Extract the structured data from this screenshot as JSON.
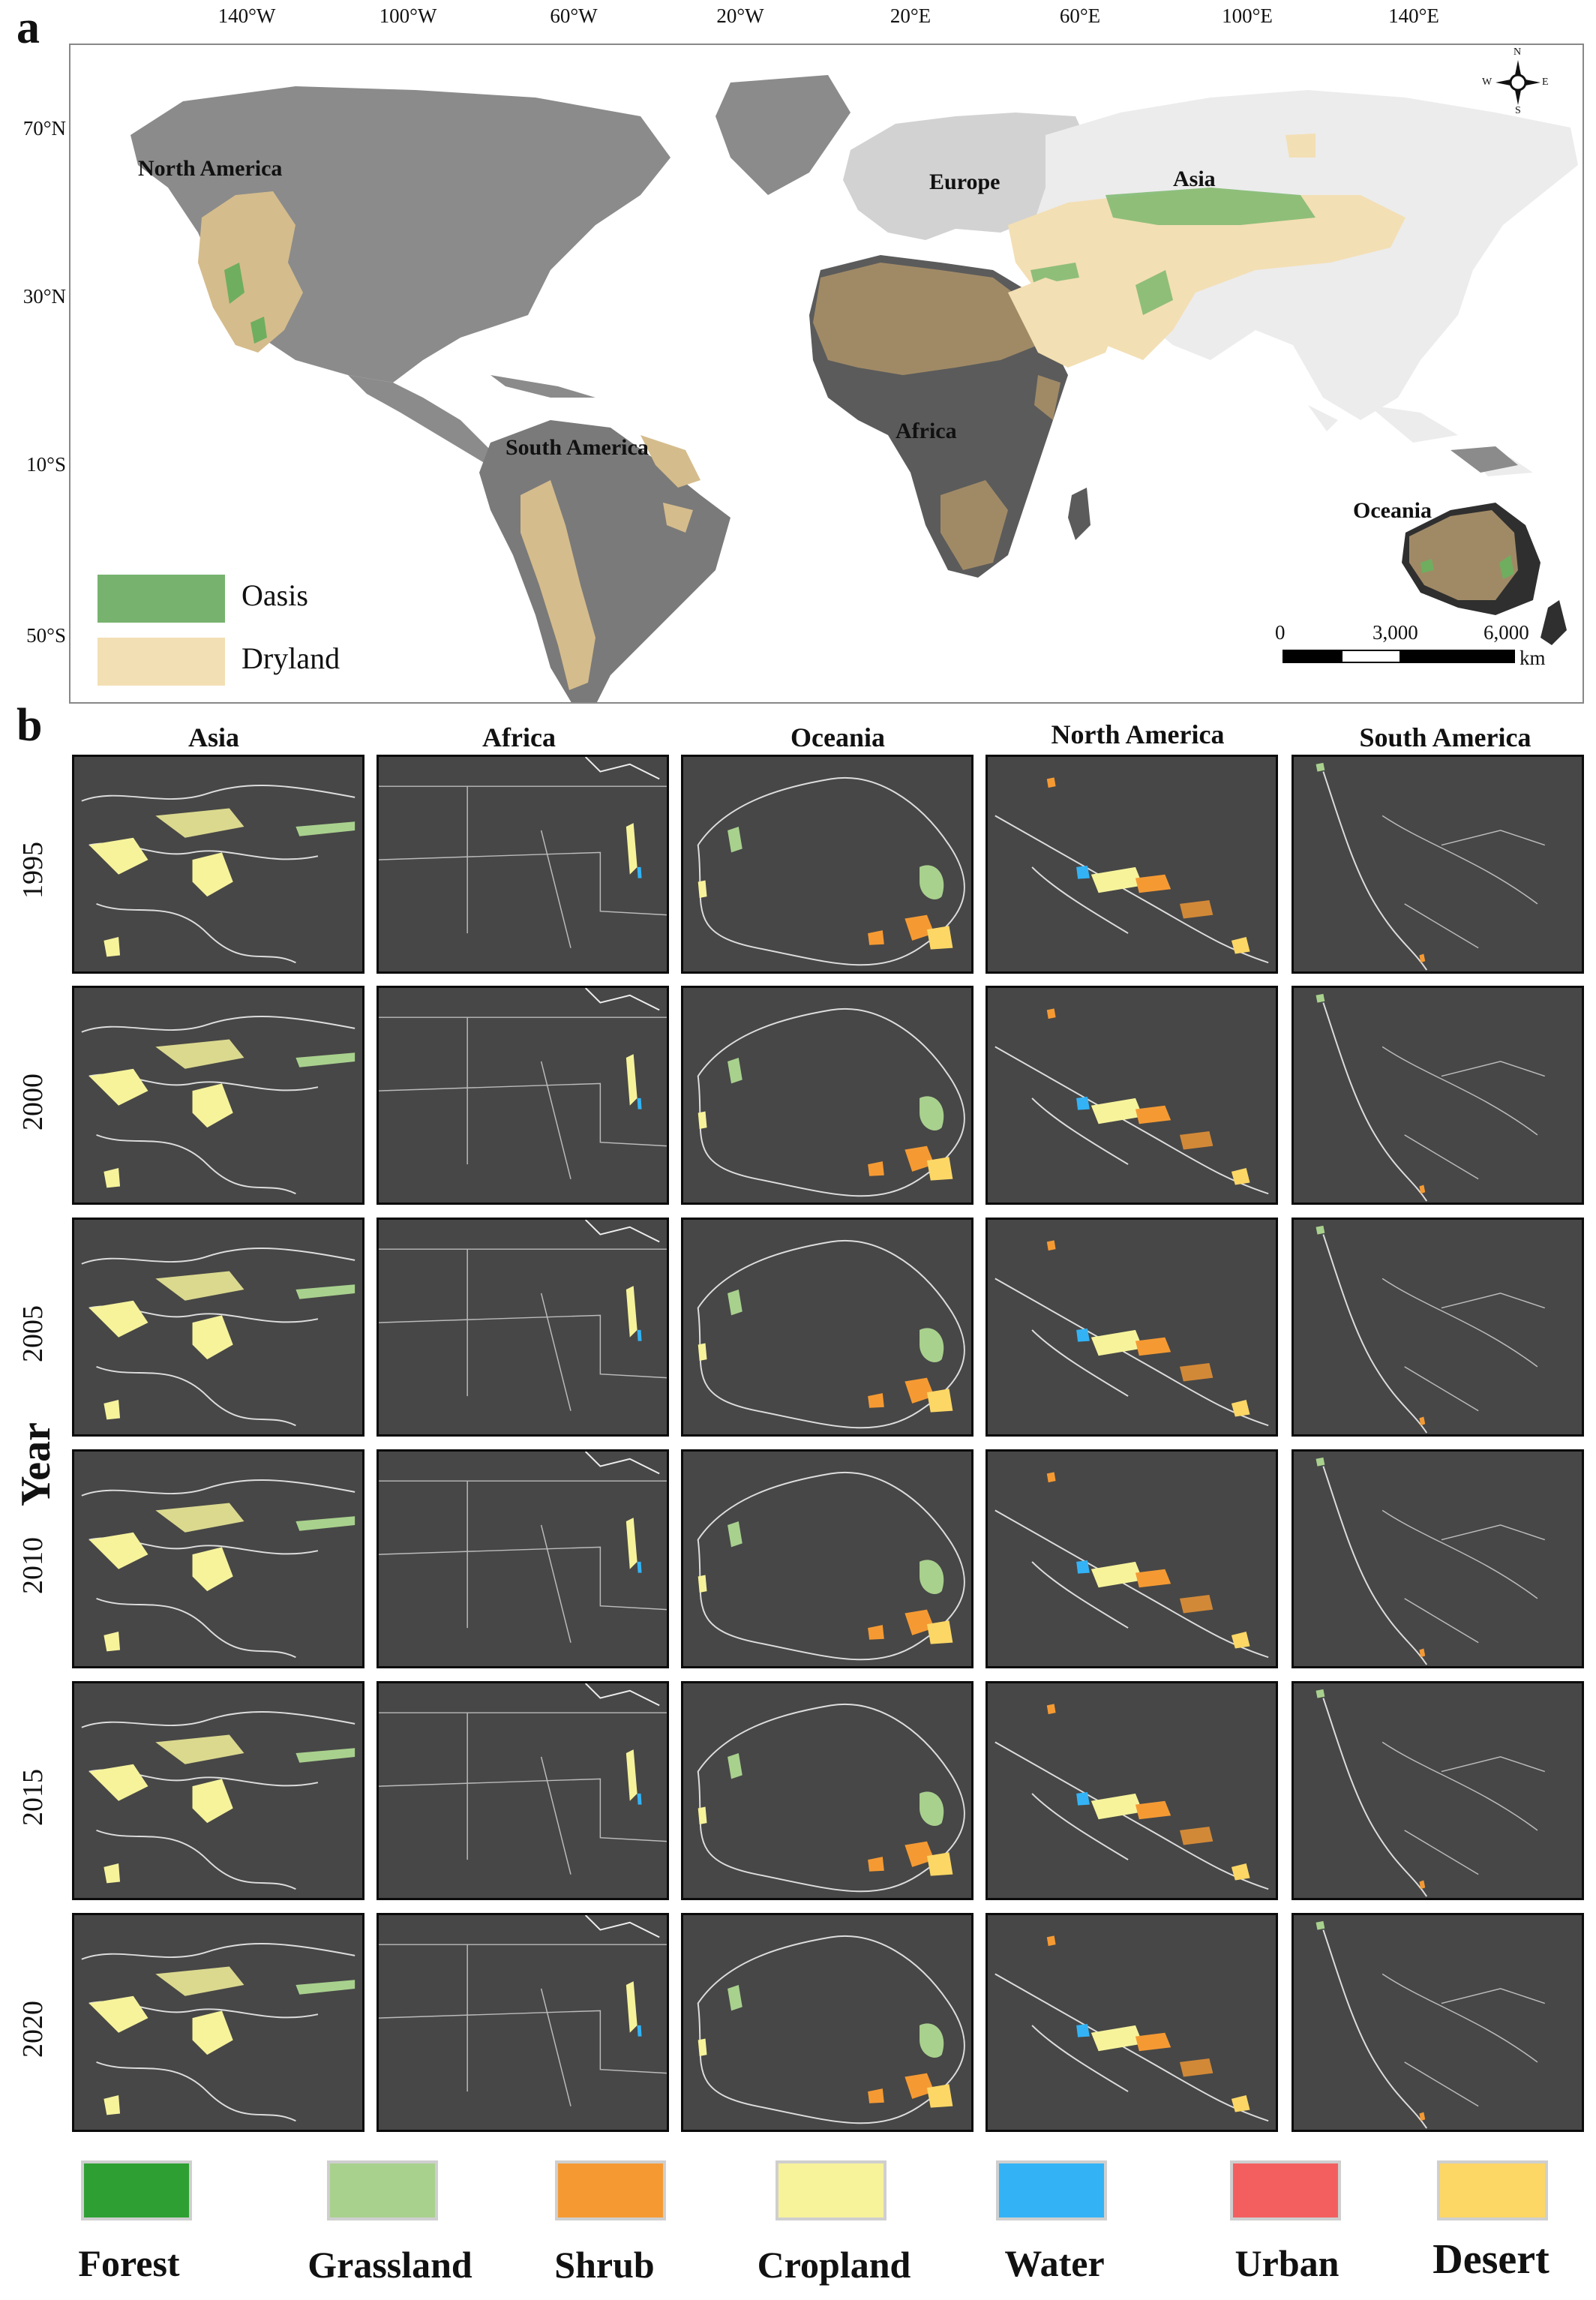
{
  "panel_a": {
    "letter": "a",
    "lon_ticks": [
      "140°W",
      "100°W",
      "60°W",
      "20°W",
      "20°E",
      "60°E",
      "100°E",
      "140°E"
    ],
    "lat_ticks": [
      "70°N",
      "30°N",
      "10°S",
      "50°S"
    ],
    "continent_labels": {
      "north_america": "North America",
      "europe": "Europe",
      "asia": "Asia",
      "south_america": "South America",
      "africa": "Africa",
      "oceania": "Oceania"
    },
    "legend": [
      {
        "label": "Oasis",
        "color": "#77b36f"
      },
      {
        "label": "Dryland",
        "color": "#f3dfb4"
      }
    ],
    "scale_bar": {
      "ticks": [
        "0",
        "3,000",
        "6,000"
      ],
      "unit": "km"
    },
    "compass": {
      "n": "N",
      "s": "S",
      "e": "E",
      "w": "W"
    }
  },
  "panel_b": {
    "letter": "b",
    "y_axis_title": "Year",
    "columns": [
      "Asia",
      "Africa",
      "Oceania",
      "North America",
      "South America"
    ],
    "years": [
      "1995",
      "2000",
      "2005",
      "2010",
      "2015",
      "2020"
    ],
    "tile_background": "#474747"
  },
  "land_cover_legend": [
    {
      "label": "Forest",
      "color": "#2ea033"
    },
    {
      "label": "Grassland",
      "color": "#a9d18e"
    },
    {
      "label": "Shrub",
      "color": "#f59a33"
    },
    {
      "label": "Cropland",
      "color": "#f6f39b"
    },
    {
      "label": "Water",
      "color": "#33b3f5"
    },
    {
      "label": "Urban",
      "color": "#f35f5f"
    },
    {
      "label": "Desert",
      "color": "#fdd766"
    }
  ]
}
